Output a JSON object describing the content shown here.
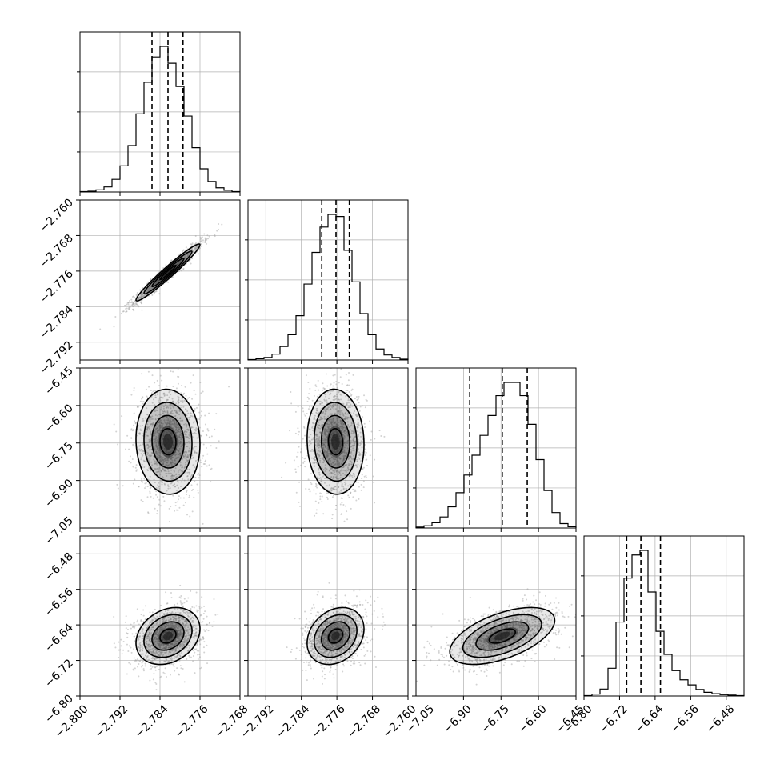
{
  "chart_data": {
    "type": "corner",
    "parameters": 4,
    "grid": true,
    "quantile_lines": "dashed",
    "colors": {
      "line": "#000000",
      "grid": "#b0b0b0",
      "scatter": "#9e9e9e",
      "density_dark": "#1a1a1a",
      "background": "#ffffff"
    },
    "axes": [
      {
        "index": 0,
        "range": [
          -2.8,
          -2.768
        ],
        "ticks": [
          -2.8,
          -2.792,
          -2.784,
          -2.776,
          -2.768
        ],
        "tick_labels": [
          "−2.800",
          "−2.792",
          "−2.784",
          "−2.776",
          "−2.768"
        ]
      },
      {
        "index": 1,
        "range": [
          -2.796,
          -2.76
        ],
        "ticks": [
          -2.792,
          -2.784,
          -2.776,
          -2.768,
          -2.76
        ],
        "tick_labels": [
          "−2.792",
          "−2.784",
          "−2.776",
          "−2.768",
          "−2.760"
        ]
      },
      {
        "index": 2,
        "range": [
          -7.09,
          -6.45
        ],
        "ticks": [
          -7.05,
          -6.9,
          -6.75,
          -6.6,
          -6.45
        ],
        "tick_labels": [
          "−7.05",
          "−6.90",
          "−6.75",
          "−6.60",
          "−6.45"
        ]
      },
      {
        "index": 3,
        "range": [
          -6.8,
          -6.44
        ],
        "ticks": [
          -6.8,
          -6.72,
          -6.64,
          -6.56,
          -6.48
        ],
        "tick_labels": [
          "−6.80",
          "−6.72",
          "−6.64",
          "−6.56",
          "−6.48"
        ]
      }
    ],
    "marginals": [
      {
        "param": 0,
        "quantiles": [
          -2.7856,
          -2.7824,
          -2.7794
        ],
        "bin_edges": [
          -2.8,
          -2.7984,
          -2.7968,
          -2.7952,
          -2.7936,
          -2.792,
          -2.7904,
          -2.7888,
          -2.7872,
          -2.7856,
          -2.784,
          -2.7824,
          -2.7808,
          -2.7792,
          -2.7776,
          -2.776,
          -2.7744,
          -2.7728,
          -2.7712,
          -2.7696,
          -2.768
        ],
        "counts": [
          1,
          2,
          5,
          12,
          30,
          62,
          110,
          185,
          260,
          320,
          345,
          305,
          250,
          180,
          105,
          55,
          25,
          10,
          4,
          1
        ]
      },
      {
        "param": 1,
        "quantiles": [
          -2.7794,
          -2.7762,
          -2.7732
        ],
        "bin_edges": [
          -2.796,
          -2.7942,
          -2.7924,
          -2.7906,
          -2.7888,
          -2.787,
          -2.7852,
          -2.7834,
          -2.7816,
          -2.7798,
          -2.778,
          -2.7762,
          -2.7744,
          -2.7726,
          -2.7708,
          -2.769,
          -2.7672,
          -2.7654,
          -2.7636,
          -2.7618,
          -2.76
        ],
        "counts": [
          1,
          3,
          6,
          14,
          32,
          60,
          105,
          180,
          255,
          315,
          345,
          340,
          260,
          185,
          110,
          60,
          26,
          12,
          6,
          2
        ]
      },
      {
        "param": 2,
        "quantiles": [
          -6.875,
          -6.745,
          -6.645
        ],
        "bin_edges": [
          -7.09,
          -7.058,
          -7.026,
          -6.994,
          -6.962,
          -6.93,
          -6.898,
          -6.866,
          -6.834,
          -6.802,
          -6.77,
          -6.738,
          -6.706,
          -6.674,
          -6.642,
          -6.61,
          -6.578,
          -6.546,
          -6.514,
          -6.482,
          -6.45
        ],
        "counts": [
          2,
          5,
          12,
          25,
          48,
          80,
          120,
          165,
          210,
          255,
          300,
          330,
          330,
          300,
          235,
          155,
          85,
          35,
          10,
          3
        ]
      },
      {
        "param": 3,
        "quantiles": [
          -6.704,
          -6.672,
          -6.628
        ],
        "bin_edges": [
          -6.8,
          -6.782,
          -6.764,
          -6.746,
          -6.728,
          -6.71,
          -6.692,
          -6.674,
          -6.656,
          -6.638,
          -6.62,
          -6.602,
          -6.584,
          -6.566,
          -6.548,
          -6.53,
          -6.512,
          -6.494,
          -6.476,
          -6.458,
          -6.44
        ],
        "counts": [
          1,
          4,
          15,
          60,
          160,
          255,
          305,
          315,
          225,
          140,
          90,
          55,
          35,
          24,
          14,
          8,
          5,
          3,
          2,
          1
        ]
      }
    ],
    "joints": [
      {
        "x_param": 0,
        "y_param": 1,
        "mean": [
          -2.7824,
          -2.7763
        ],
        "std": [
          0.0032,
          0.0032
        ],
        "corr": 0.97,
        "contour_sigmas": [
          0.5,
          1.0,
          1.5,
          2.0
        ]
      },
      {
        "x_param": 0,
        "y_param": 2,
        "mean": [
          -2.7824,
          -6.745
        ],
        "std": [
          0.0032,
          0.105
        ],
        "corr": -0.05,
        "contour_sigmas": [
          0.5,
          1.0,
          1.5,
          2.0
        ]
      },
      {
        "x_param": 1,
        "y_param": 2,
        "mean": [
          -2.7763,
          -6.745
        ],
        "std": [
          0.0032,
          0.105
        ],
        "corr": -0.05,
        "contour_sigmas": [
          0.5,
          1.0,
          1.5,
          2.0
        ]
      },
      {
        "x_param": 0,
        "y_param": 3,
        "mean": [
          -2.7824,
          -6.665
        ],
        "std": [
          0.0032,
          0.032
        ],
        "corr": 0.25,
        "contour_sigmas": [
          0.5,
          1.0,
          1.5,
          2.0
        ]
      },
      {
        "x_param": 1,
        "y_param": 3,
        "mean": [
          -2.7763,
          -6.665
        ],
        "std": [
          0.0032,
          0.032
        ],
        "corr": 0.25,
        "contour_sigmas": [
          0.5,
          1.0,
          1.5,
          2.0
        ]
      },
      {
        "x_param": 2,
        "y_param": 3,
        "mean": [
          -6.745,
          -6.665
        ],
        "std": [
          0.105,
          0.032
        ],
        "corr": 0.55,
        "contour_sigmas": [
          0.5,
          1.0,
          1.5,
          2.0
        ]
      }
    ]
  }
}
